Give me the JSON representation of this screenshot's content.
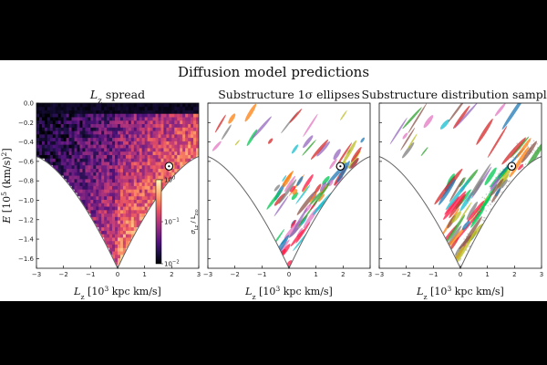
{
  "figure": {
    "title": "Diffusion model predictions"
  },
  "chart_data": [
    {
      "type": "heatmap",
      "title": "L_z spread",
      "title_parts": [
        "L",
        "z",
        " spread"
      ],
      "xlabel": "L_z [10^3 kpc km/s]",
      "xlabel_parts": [
        "L",
        "z",
        " [10",
        "3",
        " kpc km/s]"
      ],
      "ylabel": "E [10^5 (km/s)^2]",
      "ylabel_parts": [
        "E",
        " [10",
        "5",
        " (km/s)",
        "2",
        "]"
      ],
      "xlim": [
        -3,
        3
      ],
      "ylim": [
        -1.7,
        0.0
      ],
      "xticks": [
        -3,
        -2,
        -1,
        0,
        1,
        2,
        3
      ],
      "yticks": [
        0.0,
        -0.2,
        -0.4,
        -0.6,
        -0.8,
        -1.0,
        -1.2,
        -1.4,
        -1.6
      ],
      "ytick_labels": [
        "0.0",
        "−0.2",
        "−0.4",
        "−0.6",
        "−0.8",
        "−1.0",
        "−1.2",
        "−1.4",
        "−1.6"
      ],
      "colorbar": {
        "scale": "log",
        "range": [
          0.01,
          1
        ],
        "ticks": [
          {
            "base": "10",
            "exp": "0",
            "value": 1
          },
          {
            "base": "10",
            "exp": "−1",
            "value": 0.1
          },
          {
            "base": "10",
            "exp": "−2",
            "value": 0.01
          }
        ],
        "label": "σ_Lz / L_z⊙",
        "label_parts": [
          "σ",
          "L",
          "z",
          " / ",
          "L",
          "z⊙"
        ],
        "colormap": "magma"
      },
      "envelope": {
        "apex": [
          0,
          -1.7
        ],
        "edge_at_x3": -0.55,
        "shape": "curved-v"
      },
      "sun_marker": {
        "x": 1.9,
        "y": -0.65
      }
    },
    {
      "type": "scatter",
      "title": "Substructure 1σ ellipses",
      "xlabel": "L_z [10^3 kpc km/s]",
      "xlabel_parts": [
        "L",
        "z",
        " [10",
        "3",
        " kpc km/s]"
      ],
      "xlim": [
        -3,
        3
      ],
      "ylim": [
        -1.7,
        0.0
      ],
      "xticks": [
        -3,
        -2,
        -1,
        0,
        1,
        2,
        3
      ],
      "marks": "colored 1σ ellipses",
      "sun_marker": {
        "x": 1.9,
        "y": -0.65
      }
    },
    {
      "type": "scatter",
      "title": "Substructure distribution samples",
      "xlabel": "L_z [10^3 kpc km/s]",
      "xlabel_parts": [
        "L",
        "z",
        " [10",
        "3",
        " kpc km/s]"
      ],
      "xlim": [
        -3,
        3
      ],
      "ylim": [
        -1.7,
        0.0
      ],
      "xticks": [
        -3,
        -2,
        -1,
        0,
        1,
        2,
        3
      ],
      "marks": "colored sample points over grey background samples",
      "sun_marker": {
        "x": 1.9,
        "y": -0.65
      }
    }
  ],
  "colors": {
    "envelope": "#666666",
    "axis": "#111111",
    "panel3_background_points": "#b8b8b8"
  }
}
